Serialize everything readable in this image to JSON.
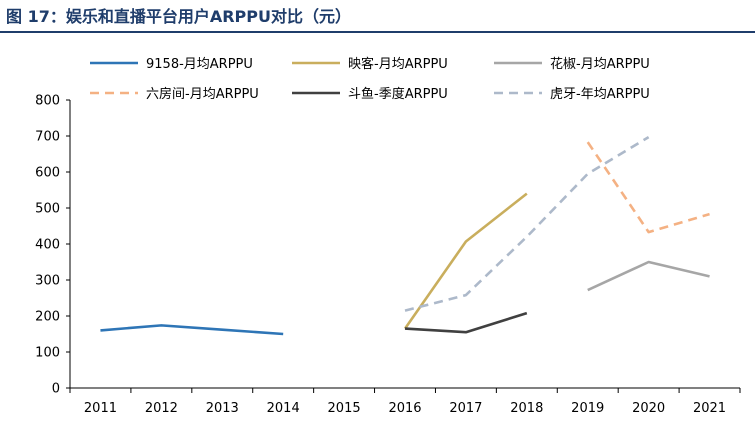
{
  "title": "图 17：娱乐和直播平台用户ARPPU对比（元）",
  "chart_data": {
    "type": "line",
    "categories": [
      "2011",
      "2012",
      "2013",
      "2014",
      "2015",
      "2016",
      "2017",
      "2018",
      "2019",
      "2020",
      "2021"
    ],
    "ylim": [
      0,
      800
    ],
    "yticks": [
      0,
      100,
      200,
      300,
      400,
      500,
      600,
      700,
      800
    ],
    "grid": false,
    "legend_position": "top",
    "series": [
      {
        "name": "9158-月均ARPPU",
        "color": "#2e75b6",
        "dash": "solid",
        "values": [
          160,
          174,
          162,
          150,
          null,
          null,
          null,
          null,
          null,
          null,
          null
        ]
      },
      {
        "name": "映客-月均ARPPU",
        "color": "#c9ae5d",
        "dash": "solid",
        "values": [
          null,
          null,
          null,
          null,
          null,
          165,
          407,
          540,
          null,
          null,
          null
        ]
      },
      {
        "name": "花椒-月均ARPPU",
        "color": "#a6a6a6",
        "dash": "solid",
        "values": [
          null,
          null,
          null,
          null,
          null,
          null,
          null,
          null,
          272,
          350,
          310
        ]
      },
      {
        "name": "六房间-月均ARPPU",
        "color": "#f4b183",
        "dash": "dashed",
        "values": [
          null,
          null,
          null,
          null,
          null,
          null,
          null,
          null,
          683,
          433,
          483
        ]
      },
      {
        "name": "斗鱼-季度ARPPU",
        "color": "#404040",
        "dash": "solid",
        "values": [
          null,
          null,
          null,
          null,
          null,
          165,
          155,
          208,
          null,
          null,
          null
        ]
      },
      {
        "name": "虎牙-年均ARPPU",
        "color": "#adb9ca",
        "dash": "dashed",
        "values": [
          null,
          null,
          null,
          null,
          null,
          215,
          258,
          420,
          595,
          697,
          null
        ]
      }
    ]
  }
}
